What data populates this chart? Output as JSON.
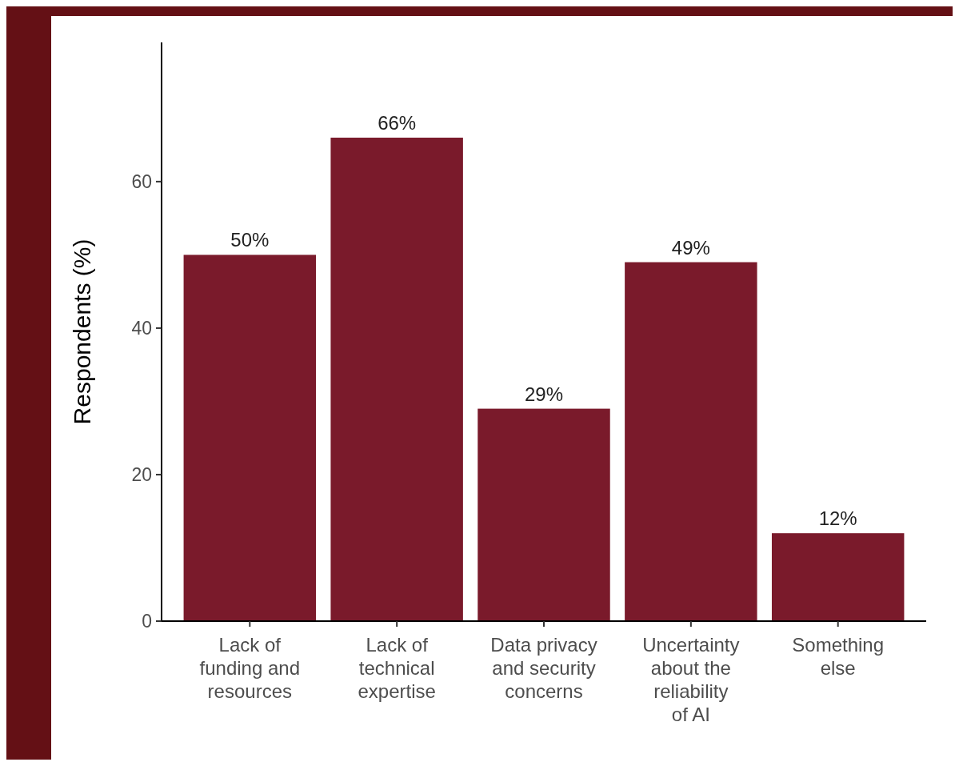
{
  "chart_data": {
    "type": "bar",
    "ylabel": "Respondents (%)",
    "categories": [
      "Lack of funding and resources",
      "Lack of technical expertise",
      "Data privacy and security concerns",
      "Uncertainty about the reliability of AI",
      "Something else"
    ],
    "values": [
      50,
      66,
      29,
      49,
      12
    ],
    "value_labels": [
      "50%",
      "66%",
      "29%",
      "49%",
      "12%"
    ],
    "color": "#7a1a2b",
    "ylim": [
      0,
      79
    ],
    "yticks": [
      0,
      20,
      40,
      60
    ]
  }
}
